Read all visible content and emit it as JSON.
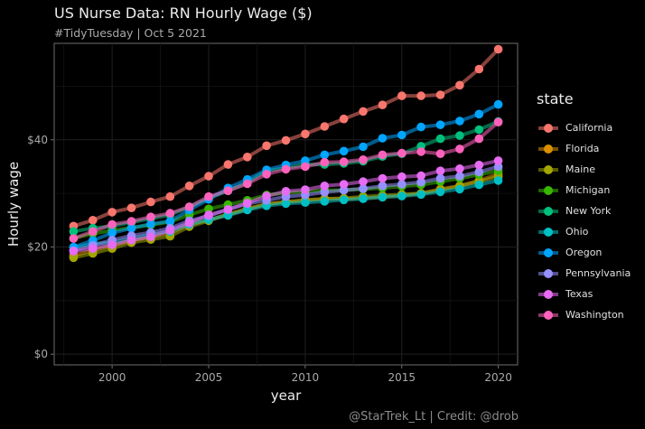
{
  "chart_data": {
    "type": "line",
    "title": "US Nurse Data: RN Hourly Wage ($)",
    "subtitle": "#TidyTuesday | Oct 5 2021",
    "caption": "@StarTrek_Lt | Credit: @drob",
    "xlabel": "year",
    "ylabel": "Hourly wage",
    "xlim": [
      1997,
      2021
    ],
    "ylim": [
      -2,
      58
    ],
    "x_ticks": [
      2000,
      2005,
      2010,
      2015,
      2020
    ],
    "x_tick_labels": [
      "2000",
      "2005",
      "2010",
      "2015",
      "2020"
    ],
    "y_ticks": [
      0,
      20,
      40
    ],
    "y_tick_labels": [
      "$0",
      "$20",
      "$40"
    ],
    "grid": true,
    "legend_title": "state",
    "legend_position": "right",
    "x": [
      1998,
      1999,
      2000,
      2001,
      2002,
      2003,
      2004,
      2005,
      2006,
      2007,
      2008,
      2009,
      2010,
      2011,
      2012,
      2013,
      2014,
      2015,
      2016,
      2017,
      2018,
      2019,
      2020
    ],
    "series": [
      {
        "name": "California",
        "color": "#F8766D",
        "values": [
          23.9,
          25.0,
          26.5,
          27.3,
          28.4,
          29.4,
          31.4,
          33.2,
          35.4,
          36.8,
          38.9,
          39.9,
          41.1,
          42.5,
          43.9,
          45.3,
          46.5,
          48.2,
          48.2,
          48.4,
          50.2,
          53.2,
          56.9
        ]
      },
      {
        "name": "Florida",
        "color": "#D89000",
        "values": [
          18.4,
          19.4,
          20.3,
          21.2,
          21.9,
          22.6,
          24.2,
          25.0,
          26.1,
          27.0,
          28.0,
          28.4,
          28.6,
          29.0,
          29.0,
          29.1,
          29.3,
          29.6,
          30.0,
          30.8,
          31.4,
          32.4,
          33.6
        ]
      },
      {
        "name": "Maine",
        "color": "#A3A500",
        "values": [
          18.0,
          18.8,
          19.7,
          20.8,
          21.4,
          22.0,
          23.8,
          24.9,
          26.1,
          27.2,
          28.0,
          28.4,
          28.8,
          29.0,
          29.1,
          29.4,
          29.6,
          29.8,
          30.0,
          30.6,
          31.4,
          32.2,
          33.1
        ]
      },
      {
        "name": "Michigan",
        "color": "#39B600",
        "values": [
          21.6,
          22.5,
          23.1,
          23.6,
          24.1,
          24.7,
          26.0,
          27.1,
          27.9,
          28.7,
          29.7,
          30.1,
          30.3,
          30.6,
          30.6,
          30.8,
          31.0,
          31.3,
          31.6,
          32.2,
          32.8,
          33.5,
          34.2
        ]
      },
      {
        "name": "New York",
        "color": "#00BF7D",
        "values": [
          22.9,
          23.5,
          23.9,
          24.6,
          25.3,
          26.0,
          27.5,
          29.1,
          30.5,
          32.0,
          34.2,
          34.7,
          35.4,
          35.4,
          35.6,
          36.0,
          36.9,
          37.4,
          38.8,
          40.2,
          40.8,
          41.9,
          43.4
        ]
      },
      {
        "name": "Ohio",
        "color": "#00BFC4",
        "values": [
          19.9,
          20.6,
          20.8,
          21.6,
          22.3,
          22.9,
          24.2,
          25.1,
          25.9,
          26.9,
          27.7,
          28.1,
          28.3,
          28.5,
          28.8,
          29.0,
          29.3,
          29.5,
          29.8,
          30.3,
          30.8,
          31.6,
          32.4
        ]
      },
      {
        "name": "Oregon",
        "color": "#00A5FF",
        "values": [
          20.0,
          21.2,
          22.6,
          23.5,
          24.3,
          24.8,
          26.9,
          28.9,
          31.0,
          32.6,
          34.4,
          35.3,
          36.1,
          37.2,
          37.9,
          38.7,
          40.3,
          40.9,
          42.4,
          42.8,
          43.5,
          44.8,
          46.6
        ]
      },
      {
        "name": "Pennsylvania",
        "color": "#9590FF",
        "values": [
          19.3,
          20.3,
          21.3,
          22.1,
          22.7,
          23.5,
          24.9,
          25.8,
          27.0,
          28.1,
          28.7,
          29.4,
          29.7,
          30.2,
          30.6,
          30.9,
          31.4,
          31.7,
          32.1,
          32.8,
          33.2,
          34.0,
          35.0
        ]
      },
      {
        "name": "Texas",
        "color": "#E76BF3",
        "values": [
          19.2,
          19.7,
          20.4,
          21.3,
          21.9,
          23.1,
          24.5,
          26.0,
          27.0,
          28.2,
          29.5,
          30.4,
          30.7,
          31.4,
          31.7,
          32.2,
          32.8,
          33.1,
          33.3,
          34.2,
          34.6,
          35.3,
          36.1
        ]
      },
      {
        "name": "Washington",
        "color": "#FF62BC",
        "values": [
          21.6,
          22.9,
          24.2,
          24.8,
          25.6,
          26.3,
          27.5,
          29.4,
          30.5,
          31.8,
          33.6,
          34.5,
          35.0,
          35.8,
          35.9,
          36.3,
          37.2,
          37.5,
          37.8,
          37.4,
          38.3,
          40.2,
          43.3
        ]
      }
    ]
  }
}
